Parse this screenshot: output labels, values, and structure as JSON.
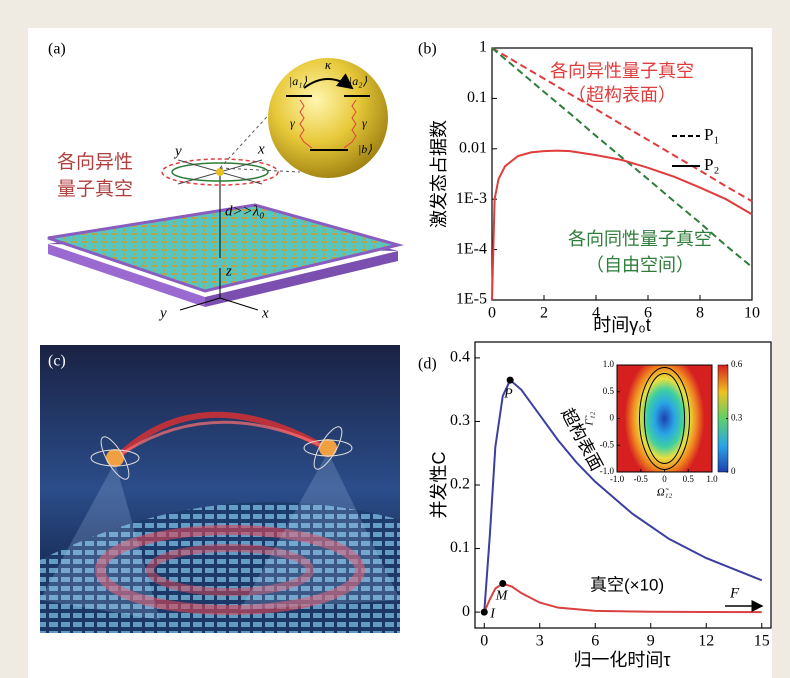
{
  "panels": {
    "a": {
      "label": "(a)",
      "title_lines": [
        "各向异性",
        "量子真空"
      ],
      "axis_labels": [
        "y",
        "x",
        "z",
        "y",
        "x"
      ],
      "distance": "d>>λ₀",
      "coupling": "κ",
      "decay": [
        "γ",
        "γ"
      ],
      "states": [
        "|a₁⟩",
        "|a₂⟩",
        "|b⟩"
      ]
    },
    "c": {
      "label": "(c)"
    }
  },
  "chart_data": [
    {
      "type": "line",
      "panel_label": "(b)",
      "ylabel": "激发态占据数",
      "xlabel": "时间γ₀t",
      "log_y": true,
      "xlim": [
        0,
        10
      ],
      "ylim": [
        1e-05,
        1
      ],
      "xticks": [
        0,
        2,
        4,
        6,
        8,
        10
      ],
      "yticks": [
        1,
        0.1,
        0.01,
        {
          "value": 0.001,
          "label": "1E-3"
        },
        {
          "value": 0.0001,
          "label": "1E-4"
        },
        {
          "value": 1e-05,
          "label": "1E-5"
        }
      ],
      "x": [
        0,
        0.1,
        0.25,
        0.5,
        1,
        1.5,
        2,
        2.5,
        3,
        4,
        5,
        6,
        7,
        8,
        9,
        10
      ],
      "series": [
        {
          "color": "#e03c3c",
          "dash": true,
          "values": [
            1,
            0.932,
            0.839,
            0.705,
            0.497,
            0.35,
            0.247,
            0.174,
            0.122,
            0.061,
            0.03,
            0.015,
            0.0074,
            0.0037,
            0.0018,
            0.00091
          ]
        },
        {
          "color": "#2e7d3a",
          "dash": true,
          "values": [
            1,
            0.905,
            0.779,
            0.607,
            0.368,
            0.223,
            0.135,
            0.082,
            0.05,
            0.018,
            0.0067,
            0.0025,
            0.00091,
            0.00034,
            0.00012,
            4.5e-05
          ]
        },
        {
          "color": "#e03c3c",
          "dash": false,
          "values": [
            1e-05,
            0.001,
            0.0025,
            0.0045,
            0.0072,
            0.0085,
            0.009,
            0.0092,
            0.009,
            0.0075,
            0.006,
            0.0042,
            0.0028,
            0.0017,
            0.001,
            0.0005
          ]
        }
      ],
      "legend": [
        {
          "name": "P₁",
          "dash": true
        },
        {
          "name": "P₂",
          "dash": false
        }
      ],
      "annotations": [
        {
          "text": "各向异性量子真空",
          "color": "#e03c3c"
        },
        {
          "text": "（超构表面）",
          "color": "#e03c3c"
        },
        {
          "text": "各向同性量子真空",
          "color": "#2e7d3a"
        },
        {
          "text": "（自由空间）",
          "color": "#2e7d3a"
        }
      ]
    },
    {
      "type": "line",
      "panel_label": "(d)",
      "ylabel": "并发性C",
      "xlabel": "归一化时间τ",
      "xlim": [
        -0.5,
        15.5
      ],
      "ylim": [
        -0.025,
        0.425
      ],
      "xticks": [
        0,
        3,
        6,
        9,
        12,
        15
      ],
      "yticks": [
        0,
        0.1,
        0.2,
        0.3,
        0.4
      ],
      "series": [
        {
          "name": "超构表面",
          "color": "#3a3fa0",
          "x": [
            0,
            0.3,
            0.6,
            1,
            1.4,
            2,
            3,
            4,
            5,
            6,
            8,
            10,
            12,
            15
          ],
          "values": [
            0,
            0.12,
            0.26,
            0.34,
            0.365,
            0.35,
            0.31,
            0.27,
            0.235,
            0.205,
            0.155,
            0.115,
            0.085,
            0.05
          ]
        },
        {
          "name": "真空(×10)",
          "color": "#d94040",
          "x": [
            0,
            0.3,
            0.6,
            1,
            1.5,
            2,
            3,
            4,
            6,
            9,
            12,
            15
          ],
          "values": [
            0,
            0.02,
            0.037,
            0.045,
            0.04,
            0.03,
            0.015,
            0.007,
            0.002,
            0.0005,
            0.0001,
            0
          ]
        }
      ],
      "points": [
        {
          "label": "P",
          "x": 1.4,
          "y": 0.365
        },
        {
          "label": "M",
          "x": 1,
          "y": 0.045
        },
        {
          "label": "I",
          "x": 0,
          "y": 0
        }
      ],
      "arrow_label": "F",
      "inset": {
        "xlabel": "Ω̃₁₂",
        "ylabel": "Γ̃₁₂",
        "xlim": [
          -1,
          1
        ],
        "ylim": [
          -1,
          1
        ],
        "xticks": [
          {
            "value": -1,
            "label": "-1.0"
          },
          {
            "value": -0.5,
            "label": "-0.5"
          },
          0,
          0.5,
          {
            "value": 1,
            "label": "1.0"
          }
        ],
        "yticks": [
          {
            "value": -1,
            "label": "-1.0"
          },
          {
            "value": -0.5,
            "label": "-0.5"
          },
          0,
          0.5,
          {
            "value": 1,
            "label": "1.0"
          }
        ],
        "clim": [
          0,
          0.6
        ],
        "colorbar_ticks": [
          0,
          0.3,
          0.6
        ]
      }
    }
  ]
}
